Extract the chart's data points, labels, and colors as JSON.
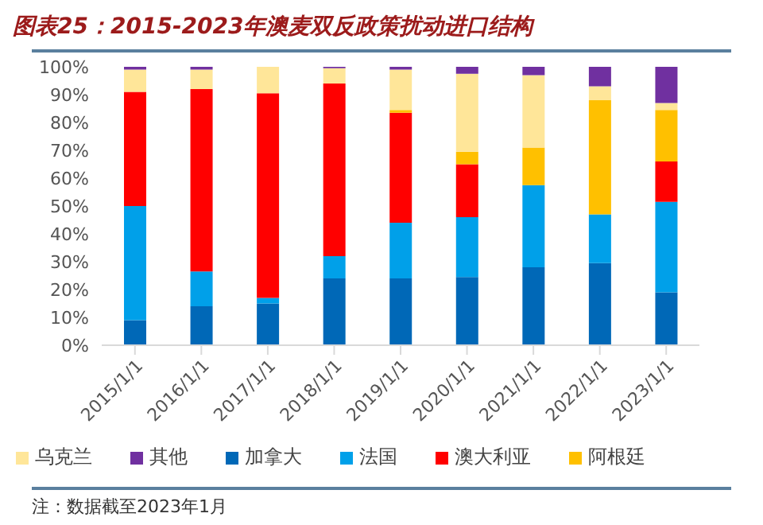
{
  "chart_data": {
    "type": "bar",
    "title": "图表25：2015-2023年澳麦双反政策扰动进口结构",
    "stacked": true,
    "categories": [
      "2015/1/1",
      "2016/1/1",
      "2017/1/1",
      "2018/1/1",
      "2019/1/1",
      "2020/1/1",
      "2021/1/1",
      "2022/1/1",
      "2023/1/1"
    ],
    "series": [
      {
        "name": "加拿大",
        "color": "#0068b7",
        "values": [
          9,
          14,
          15,
          24,
          24,
          24.5,
          28,
          29.5,
          19
        ]
      },
      {
        "name": "法国",
        "color": "#00a0e9",
        "values": [
          41,
          12.5,
          2,
          8,
          20,
          21.5,
          29.5,
          17.5,
          32.5
        ]
      },
      {
        "name": "澳大利亚",
        "color": "#ff0000",
        "values": [
          41,
          65.5,
          73.5,
          62,
          39.5,
          19,
          0,
          0,
          14.5
        ]
      },
      {
        "name": "阿根廷",
        "color": "#ffc000",
        "values": [
          0,
          0,
          0,
          0,
          1,
          4.5,
          13.5,
          41,
          18.5
        ]
      },
      {
        "name": "乌克兰",
        "color": "#ffe699",
        "values": [
          8,
          7,
          9.5,
          5.5,
          14.5,
          28,
          26,
          5,
          2.5
        ]
      },
      {
        "name": "其他",
        "color": "#7030a0",
        "values": [
          1,
          1,
          0,
          0.5,
          1,
          2.5,
          3,
          7,
          13
        ]
      }
    ],
    "ylim": [
      0,
      100
    ],
    "yticks": [
      {
        "value": 0,
        "label": "0%"
      },
      {
        "value": 10,
        "label": "10%"
      },
      {
        "value": 20,
        "label": "20%"
      },
      {
        "value": 30,
        "label": "30%"
      },
      {
        "value": 40,
        "label": "40%"
      },
      {
        "value": 50,
        "label": "50%"
      },
      {
        "value": 60,
        "label": "60%"
      },
      {
        "value": 70,
        "label": "70%"
      },
      {
        "value": 80,
        "label": "80%"
      },
      {
        "value": 90,
        "label": "90%"
      },
      {
        "value": 100,
        "label": "100%"
      }
    ],
    "grid": false,
    "legend": "bottom",
    "annotations": [
      "注：数据截至2023年1月"
    ]
  }
}
